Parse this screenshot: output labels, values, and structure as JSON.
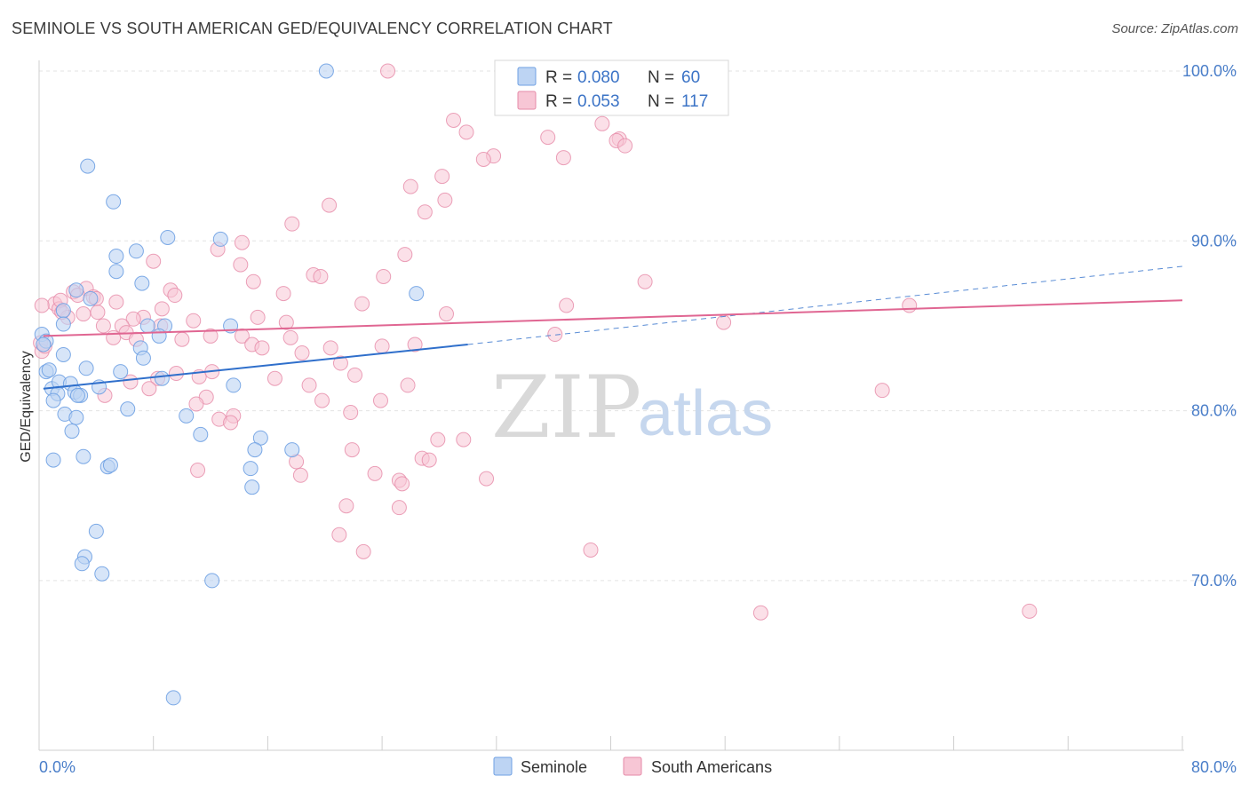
{
  "title": "SEMINOLE VS SOUTH AMERICAN GED/EQUIVALENCY CORRELATION CHART",
  "source": "Source: ZipAtlas.com",
  "colors": {
    "seminole": "#6fa1e3",
    "seminole_fill": "#bdd4f3",
    "seminole_line": "#2f6fcb",
    "south_americans": "#e68aa8",
    "south_americans_fill": "#f7c6d5",
    "south_americans_line": "#e06692",
    "accent_text": "#3b73c6"
  },
  "legend": {
    "rows": [
      {
        "r_label": "R =",
        "r_value": "0.080",
        "n_label": "N =",
        "n_value": "60"
      },
      {
        "r_label": "R =",
        "r_value": "0.053",
        "n_label": "N =",
        "n_value": "117"
      }
    ]
  },
  "bottom_legend": [
    "Seminole",
    "South Americans"
  ],
  "watermark": {
    "zip": "ZIP",
    "atlas": "atlas"
  },
  "chart_data": {
    "type": "scatter",
    "title": "SEMINOLE VS SOUTH AMERICAN GED/EQUIVALENCY CORRELATION CHART",
    "xlabel": "",
    "ylabel": "GED/Equivalency",
    "xlim": [
      0,
      80
    ],
    "ylim": [
      60,
      101.5
    ],
    "x_tick_labels": [
      "0.0%",
      "80.0%"
    ],
    "y_ticks": [
      70,
      80,
      90,
      100
    ],
    "y_tick_labels": [
      "70.0%",
      "80.0%",
      "90.0%",
      "100.0%"
    ],
    "grid": true,
    "series": [
      {
        "name": "Seminole",
        "r": 0.08,
        "n": 60,
        "trend": {
          "x0": 0.3,
          "y0": 81.3,
          "x1": 30.0,
          "y1": 83.9,
          "dashed_to_x": 80,
          "dashed_to_y": 88.5
        },
        "points": [
          [
            20.1,
            100.0
          ],
          [
            3.4,
            94.4
          ],
          [
            5.2,
            92.3
          ],
          [
            9.0,
            90.2
          ],
          [
            12.7,
            90.1
          ],
          [
            6.8,
            89.4
          ],
          [
            5.4,
            89.1
          ],
          [
            5.4,
            88.2
          ],
          [
            7.2,
            87.5
          ],
          [
            2.6,
            87.1
          ],
          [
            26.4,
            86.9
          ],
          [
            3.6,
            86.6
          ],
          [
            1.7,
            85.9
          ],
          [
            1.7,
            85.1
          ],
          [
            7.6,
            85.0
          ],
          [
            8.8,
            85.0
          ],
          [
            13.4,
            85.0
          ],
          [
            0.2,
            84.5
          ],
          [
            0.5,
            84.1
          ],
          [
            8.4,
            84.4
          ],
          [
            7.1,
            83.7
          ],
          [
            1.7,
            83.3
          ],
          [
            7.3,
            83.1
          ],
          [
            0.5,
            82.3
          ],
          [
            0.7,
            82.4
          ],
          [
            3.3,
            82.5
          ],
          [
            5.7,
            82.3
          ],
          [
            8.6,
            81.9
          ],
          [
            0.9,
            81.3
          ],
          [
            1.4,
            81.7
          ],
          [
            2.2,
            81.6
          ],
          [
            4.2,
            81.4
          ],
          [
            13.6,
            81.5
          ],
          [
            1.3,
            81.0
          ],
          [
            2.5,
            81.1
          ],
          [
            2.9,
            80.9
          ],
          [
            1.0,
            80.6
          ],
          [
            2.7,
            80.9
          ],
          [
            6.2,
            80.1
          ],
          [
            1.8,
            79.8
          ],
          [
            2.6,
            79.6
          ],
          [
            10.3,
            79.7
          ],
          [
            2.3,
            78.8
          ],
          [
            11.3,
            78.6
          ],
          [
            15.5,
            78.4
          ],
          [
            15.1,
            77.7
          ],
          [
            17.7,
            77.7
          ],
          [
            3.1,
            77.3
          ],
          [
            1.0,
            77.1
          ],
          [
            4.8,
            76.7
          ],
          [
            5.0,
            76.8
          ],
          [
            14.8,
            76.6
          ],
          [
            14.9,
            75.5
          ],
          [
            4.0,
            72.9
          ],
          [
            3.2,
            71.4
          ],
          [
            3.0,
            71.0
          ],
          [
            4.4,
            70.4
          ],
          [
            12.1,
            70.0
          ],
          [
            9.4,
            63.1
          ],
          [
            0.3,
            83.9
          ]
        ]
      },
      {
        "name": "South Americans",
        "r": 0.053,
        "n": 117,
        "trend": {
          "x0": 0.3,
          "y0": 84.4,
          "x1": 80,
          "y1": 86.5
        },
        "points": [
          [
            24.4,
            100.0
          ],
          [
            32.7,
            100.0
          ],
          [
            37.7,
            99.9
          ],
          [
            29.0,
            97.1
          ],
          [
            29.9,
            96.4
          ],
          [
            35.6,
            96.1
          ],
          [
            39.4,
            96.9
          ],
          [
            40.6,
            96.0
          ],
          [
            40.4,
            95.9
          ],
          [
            41.0,
            95.6
          ],
          [
            31.8,
            95.0
          ],
          [
            31.1,
            94.8
          ],
          [
            36.7,
            94.9
          ],
          [
            28.2,
            93.8
          ],
          [
            26.0,
            93.2
          ],
          [
            28.4,
            92.4
          ],
          [
            20.3,
            92.1
          ],
          [
            27.0,
            91.7
          ],
          [
            17.7,
            91.0
          ],
          [
            14.2,
            89.9
          ],
          [
            12.5,
            89.5
          ],
          [
            25.6,
            89.2
          ],
          [
            8.0,
            88.8
          ],
          [
            14.1,
            88.6
          ],
          [
            19.2,
            88.0
          ],
          [
            19.7,
            87.9
          ],
          [
            24.1,
            87.9
          ],
          [
            15.0,
            87.6
          ],
          [
            42.4,
            87.6
          ],
          [
            3.3,
            87.2
          ],
          [
            9.2,
            87.1
          ],
          [
            2.4,
            87.0
          ],
          [
            9.5,
            86.8
          ],
          [
            2.7,
            86.8
          ],
          [
            3.8,
            86.7
          ],
          [
            4.0,
            86.6
          ],
          [
            17.1,
            86.9
          ],
          [
            22.6,
            86.3
          ],
          [
            1.1,
            86.3
          ],
          [
            1.4,
            86.0
          ],
          [
            1.5,
            86.5
          ],
          [
            5.4,
            86.4
          ],
          [
            8.6,
            86.0
          ],
          [
            36.9,
            86.2
          ],
          [
            60.9,
            86.2
          ],
          [
            2.0,
            85.5
          ],
          [
            3.1,
            85.7
          ],
          [
            4.1,
            85.8
          ],
          [
            28.5,
            85.7
          ],
          [
            7.3,
            85.5
          ],
          [
            15.3,
            85.5
          ],
          [
            10.8,
            85.3
          ],
          [
            6.6,
            85.4
          ],
          [
            17.3,
            85.2
          ],
          [
            4.5,
            85.0
          ],
          [
            5.8,
            85.0
          ],
          [
            8.5,
            85.0
          ],
          [
            47.9,
            85.2
          ],
          [
            12.0,
            84.4
          ],
          [
            14.2,
            84.4
          ],
          [
            6.1,
            84.6
          ],
          [
            6.8,
            84.2
          ],
          [
            17.6,
            84.3
          ],
          [
            0.1,
            84.0
          ],
          [
            5.2,
            84.3
          ],
          [
            10.0,
            84.2
          ],
          [
            14.9,
            83.9
          ],
          [
            24.0,
            83.8
          ],
          [
            26.3,
            83.9
          ],
          [
            20.4,
            83.7
          ],
          [
            18.4,
            83.4
          ],
          [
            0.2,
            83.5
          ],
          [
            36.1,
            84.5
          ],
          [
            15.6,
            83.7
          ],
          [
            21.1,
            82.8
          ],
          [
            12.1,
            82.3
          ],
          [
            9.6,
            82.2
          ],
          [
            8.3,
            81.9
          ],
          [
            11.2,
            82.0
          ],
          [
            16.5,
            81.9
          ],
          [
            22.1,
            82.1
          ],
          [
            6.4,
            81.7
          ],
          [
            18.9,
            81.5
          ],
          [
            25.8,
            81.5
          ],
          [
            7.7,
            81.3
          ],
          [
            4.6,
            80.9
          ],
          [
            11.7,
            80.8
          ],
          [
            11.0,
            80.4
          ],
          [
            19.8,
            80.6
          ],
          [
            23.9,
            80.6
          ],
          [
            59.0,
            81.2
          ],
          [
            21.8,
            79.9
          ],
          [
            13.6,
            79.7
          ],
          [
            12.6,
            79.5
          ],
          [
            13.4,
            79.3
          ],
          [
            27.9,
            78.3
          ],
          [
            29.7,
            78.3
          ],
          [
            21.9,
            77.7
          ],
          [
            26.8,
            77.2
          ],
          [
            27.3,
            77.1
          ],
          [
            18.0,
            77.0
          ],
          [
            11.1,
            76.5
          ],
          [
            18.3,
            76.2
          ],
          [
            23.5,
            76.3
          ],
          [
            25.2,
            75.9
          ],
          [
            25.4,
            75.7
          ],
          [
            31.3,
            76.0
          ],
          [
            21.5,
            74.4
          ],
          [
            25.2,
            74.3
          ],
          [
            21.0,
            72.7
          ],
          [
            22.7,
            71.7
          ],
          [
            38.6,
            71.8
          ],
          [
            50.5,
            68.1
          ],
          [
            69.3,
            68.2
          ],
          [
            0.2,
            86.2
          ],
          [
            1.6,
            85.8
          ],
          [
            0.4,
            83.8
          ]
        ]
      }
    ]
  }
}
